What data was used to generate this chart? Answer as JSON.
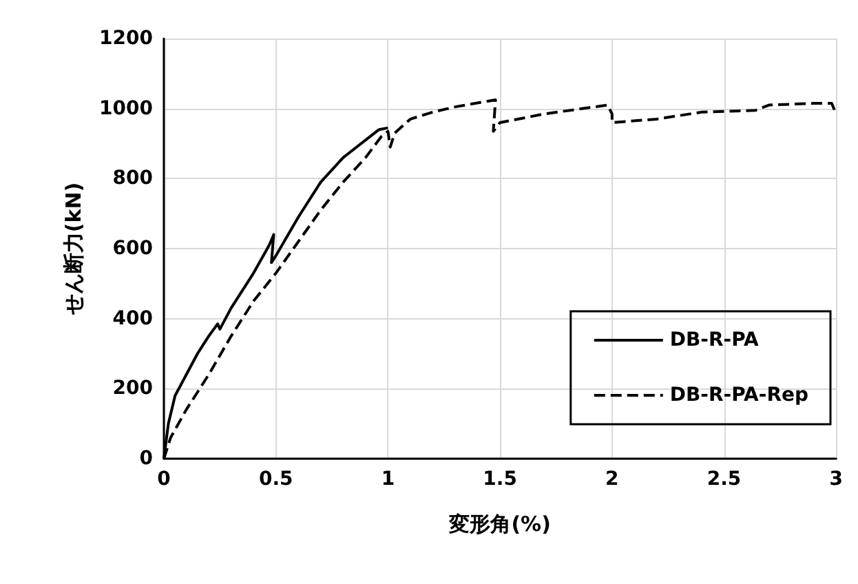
{
  "chart_data": {
    "type": "line",
    "xlabel": "変形角(%)",
    "ylabel": "せん断力(kN)",
    "xlim": [
      0,
      3
    ],
    "ylim": [
      0,
      1200
    ],
    "xticks": [
      0,
      0.5,
      1,
      1.5,
      2,
      2.5,
      3
    ],
    "yticks": [
      0,
      200,
      400,
      600,
      800,
      1000,
      1200
    ],
    "grid": true,
    "legend": "bottom right",
    "marker": "none",
    "series": [
      {
        "name": "DB-R-PA",
        "color": "#000000",
        "line_style": "solid",
        "x": [
          0,
          0.02,
          0.05,
          0.1,
          0.15,
          0.2,
          0.24,
          0.25,
          0.3,
          0.4,
          0.47,
          0.49,
          0.48,
          0.5,
          0.6,
          0.7,
          0.8,
          0.9,
          0.96,
          1.0
        ],
        "values": [
          0,
          100,
          180,
          240,
          300,
          350,
          385,
          370,
          430,
          530,
          610,
          640,
          560,
          580,
          690,
          790,
          860,
          910,
          940,
          945
        ]
      },
      {
        "name": "DB-R-PA-Rep",
        "color": "#000000",
        "line_style": "dashed",
        "x": [
          0,
          0.03,
          0.1,
          0.2,
          0.3,
          0.4,
          0.5,
          0.6,
          0.7,
          0.8,
          0.9,
          0.97,
          1.0,
          1.01,
          1.03,
          1.1,
          1.2,
          1.3,
          1.48,
          1.47,
          1.5,
          1.7,
          1.98,
          2.0,
          2.0,
          2.2,
          2.4,
          2.64,
          2.7,
          2.9,
          2.98,
          3.0
        ],
        "values": [
          0,
          60,
          140,
          240,
          350,
          450,
          530,
          620,
          710,
          790,
          860,
          920,
          935,
          890,
          930,
          970,
          990,
          1005,
          1025,
          935,
          960,
          985,
          1010,
          985,
          960,
          970,
          990,
          995,
          1010,
          1015,
          1015,
          985
        ]
      }
    ]
  }
}
